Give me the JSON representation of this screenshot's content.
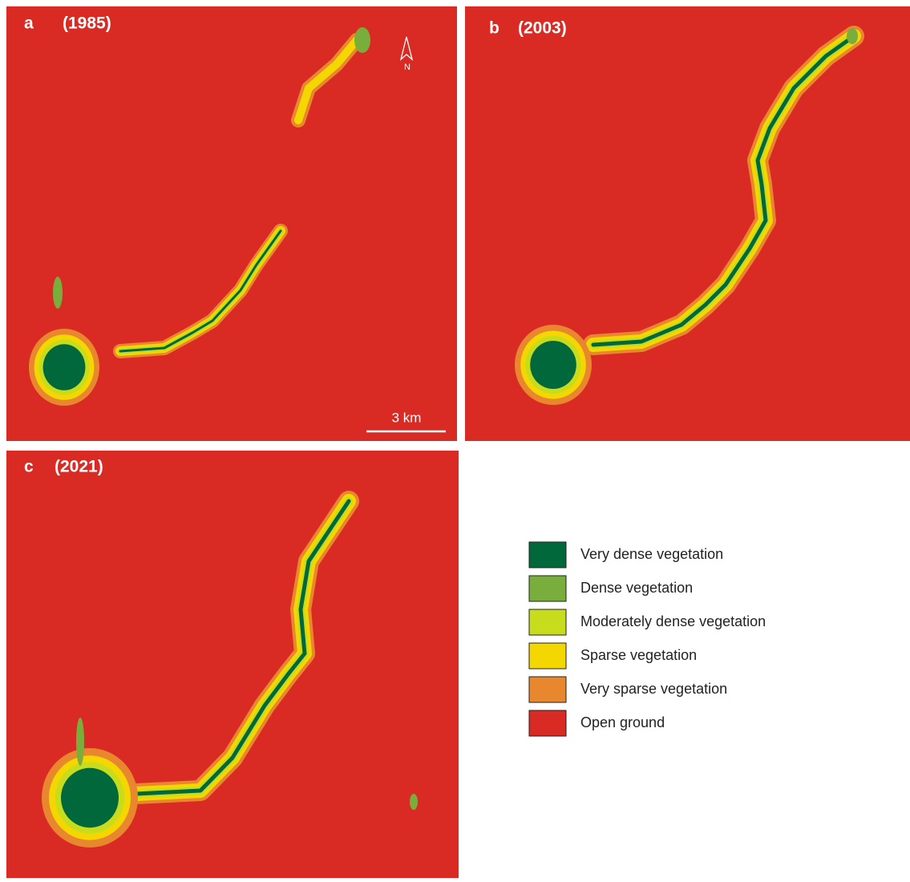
{
  "panels": [
    {
      "letter": "a",
      "year": "(1985)"
    },
    {
      "letter": "b",
      "year": "(2003)"
    },
    {
      "letter": "c",
      "year": "(2021)"
    }
  ],
  "scale_bar": "3 km",
  "north_arrow": "N",
  "legend": {
    "items": [
      {
        "label": "Very dense vegetation",
        "color": "#00683a"
      },
      {
        "label": "Dense vegetation",
        "color": "#7aae3c"
      },
      {
        "label": "Moderately dense vegetation",
        "color": "#c8dc1e"
      },
      {
        "label": "Sparse vegetation",
        "color": "#f4d600"
      },
      {
        "label": "Very sparse vegetation",
        "color": "#e8872e"
      },
      {
        "label": "Open ground",
        "color": "#d92b23"
      }
    ]
  }
}
